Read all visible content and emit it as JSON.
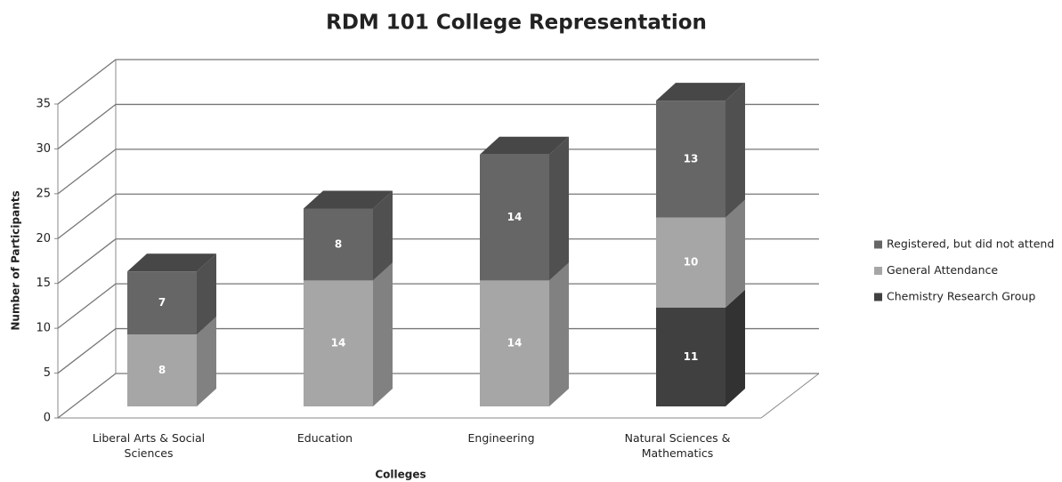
{
  "chart_data": {
    "type": "bar3d_stacked",
    "title": "RDM 101 College Representation",
    "x_label": "Colleges",
    "y_label": "Number of Participants",
    "categories": [
      "Liberal Arts & Social Sciences",
      "Education",
      "Engineering",
      "Natural Sciences & Mathematics"
    ],
    "series": [
      {
        "name": "Chemistry Research Group",
        "color": "#404040",
        "values": [
          0,
          0,
          0,
          11
        ]
      },
      {
        "name": "General Attendance",
        "color": "#a6a6a6",
        "values": [
          8,
          14,
          14,
          10
        ]
      },
      {
        "name": "Registered, but did not attend",
        "color": "#666666",
        "values": [
          7,
          8,
          14,
          13
        ]
      }
    ],
    "ylim": [
      0,
      35
    ],
    "yticks": [
      0,
      5,
      10,
      15,
      20,
      25,
      30,
      35
    ],
    "grid": true,
    "legend": "right"
  }
}
